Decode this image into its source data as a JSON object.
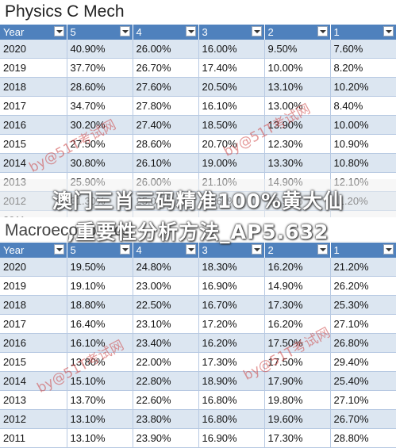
{
  "physics": {
    "title": "Physics C Mech",
    "headers": [
      "Year",
      "5",
      "4",
      "3",
      "2",
      "1"
    ],
    "rows": [
      [
        "2020",
        "40.90%",
        "26.00%",
        "16.00%",
        "9.50%",
        "7.60%"
      ],
      [
        "2019",
        "37.70%",
        "26.70%",
        "17.40%",
        "10.00%",
        "8.20%"
      ],
      [
        "2018",
        "28.60%",
        "27.60%",
        "20.50%",
        "13.10%",
        "10.20%"
      ],
      [
        "2017",
        "34.70%",
        "27.80%",
        "16.10%",
        "13.00%",
        "8.40%"
      ],
      [
        "2016",
        "30.20%",
        "27.40%",
        "18.50%",
        "13.90%",
        "10.00%"
      ],
      [
        "2015",
        "27.50%",
        "28.60%",
        "20.70%",
        "12.30%",
        "10.90%"
      ],
      [
        "2014",
        "30.80%",
        "26.10%",
        "19.00%",
        "13.30%",
        "10.80%"
      ],
      [
        "2013",
        "25.90%",
        "26.00%",
        "21.10%",
        "14.90%",
        "12.10%"
      ],
      [
        "2012",
        "31.30%",
        "25.00%",
        "18.60%",
        "13.90%",
        "11.20%"
      ],
      [
        "2011",
        "",
        "",
        "",
        "",
        ""
      ]
    ]
  },
  "macro": {
    "title": "Macroeconomics",
    "headers": [
      "Year",
      "5",
      "4",
      "3",
      "2",
      "1"
    ],
    "rows": [
      [
        "2020",
        "19.50%",
        "24.80%",
        "18.30%",
        "16.20%",
        "21.20%"
      ],
      [
        "2019",
        "19.10%",
        "23.00%",
        "16.90%",
        "14.90%",
        "26.20%"
      ],
      [
        "2018",
        "18.80%",
        "22.50%",
        "16.70%",
        "17.30%",
        "25.30%"
      ],
      [
        "2017",
        "16.40%",
        "23.10%",
        "17.20%",
        "16.20%",
        "27.10%"
      ],
      [
        "2016",
        "16.10%",
        "23.40%",
        "16.20%",
        "17.50%",
        "26.80%"
      ],
      [
        "2015",
        "13.80%",
        "22.00%",
        "17.30%",
        "17.50%",
        "29.40%"
      ],
      [
        "2014",
        "15.10%",
        "22.80%",
        "18.90%",
        "17.90%",
        "25.40%"
      ],
      [
        "2013",
        "13.70%",
        "22.60%",
        "16.80%",
        "19.80%",
        "27.10%"
      ],
      [
        "2012",
        "13.10%",
        "23.80%",
        "16.80%",
        "19.60%",
        "26.70%"
      ],
      [
        "2011",
        "13.10%",
        "23.90%",
        "16.90%",
        "17.30%",
        "28.80%"
      ]
    ]
  },
  "banner": {
    "line1": "澳门三肖三码精准100%黄大仙",
    "line2": ",重要性分析方法_AP5.632"
  },
  "watermark": {
    "text": "by@51T考试网"
  },
  "colors": {
    "header_bg": "#4f81bd",
    "band_bg": "#dce6f1",
    "grid_line": "#b7c9e2",
    "watermark": "#cd4646"
  }
}
